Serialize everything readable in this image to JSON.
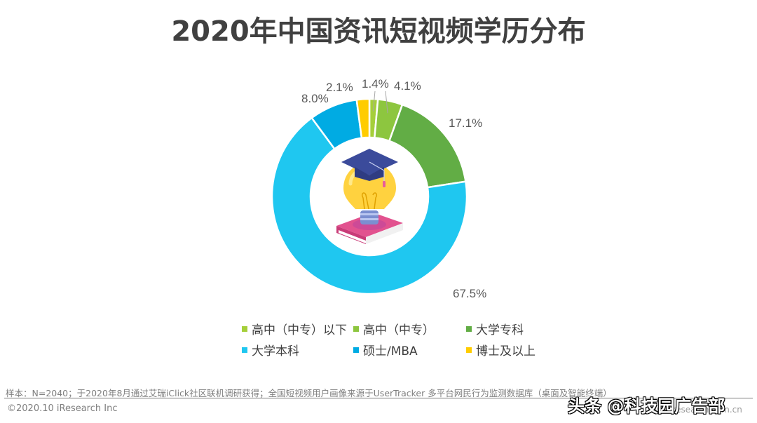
{
  "page": {
    "title": "2020年中国资讯短视频学历分布"
  },
  "chart_data": {
    "type": "pie",
    "subtype": "donut",
    "title": "2020年中国资讯短视频学历分布",
    "categories": [
      "高中（中专）以下",
      "高中（中专）",
      "大学专科",
      "大学本科",
      "硕士/MBA",
      "博士及以上"
    ],
    "values": [
      1.4,
      4.1,
      17.1,
      67.5,
      8.0,
      2.1
    ],
    "value_labels": [
      "1.4%",
      "4.1%",
      "17.1%",
      "67.5%",
      "8.0%",
      "2.1%"
    ],
    "colors": [
      "#a5cf3a",
      "#8dc63f",
      "#62ad45",
      "#1fc7f0",
      "#00abe3",
      "#ffcc00"
    ],
    "unit": "%",
    "start_angle": "top, clockwise",
    "legend_position": "bottom",
    "center_icon": "graduation-cap-lightbulb-book"
  },
  "legend": {
    "items": [
      {
        "label": "高中（中专）以下",
        "color": "#a5cf3a"
      },
      {
        "label": "高中（中专）",
        "color": "#8dc63f"
      },
      {
        "label": "大学专科",
        "color": "#62ad45"
      },
      {
        "label": "大学本科",
        "color": "#1fc7f0"
      },
      {
        "label": "硕士/MBA",
        "color": "#00abe3"
      },
      {
        "label": "博士及以上",
        "color": "#ffcc00"
      }
    ]
  },
  "footer": {
    "note": "样本：N=2040；于2020年8月通过艾瑞iClick社区联机调研获得；全国短视频用户画像来源于UserTracker 多平台网民行为监测数据库（桌面及智能终端）",
    "copyright": "©2020.10 iResearch Inc",
    "site": "www.iresearch.com.cn",
    "watermark": "头条 @科技园广告部"
  }
}
